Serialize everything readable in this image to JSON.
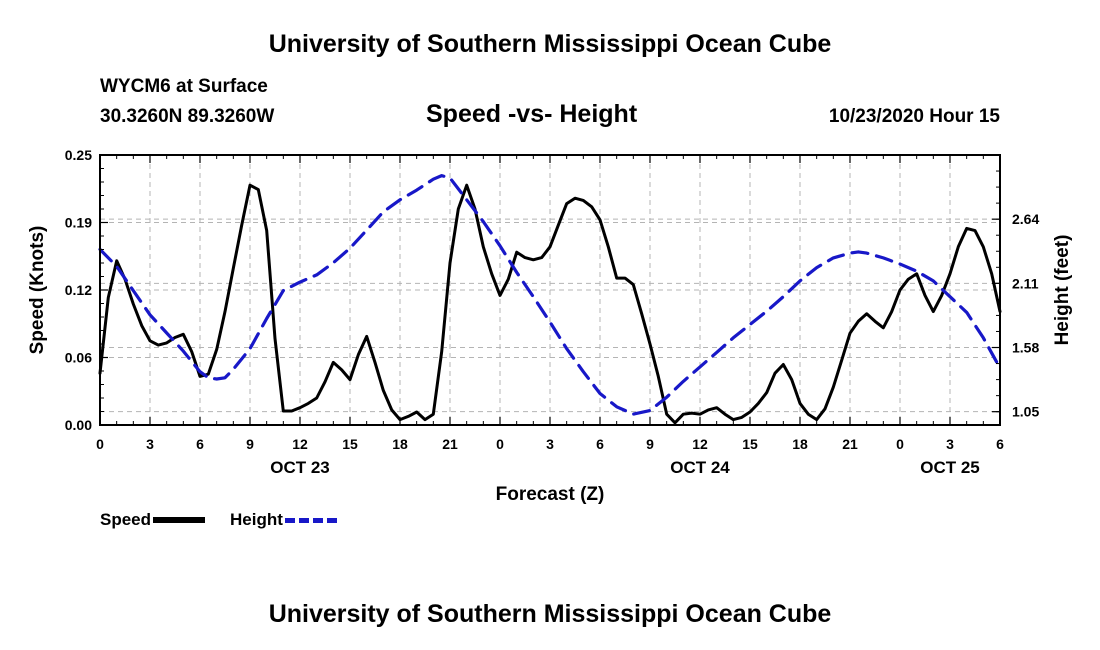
{
  "header": {
    "title": "University of Southern Mississippi Ocean Cube",
    "station": "WYCM6 at Surface",
    "coords": "30.3260N 89.3260W",
    "plot_title": "Speed -vs- Height",
    "date": "10/23/2020 Hour 15"
  },
  "footer": {
    "title": "University of Southern Mississippi Ocean Cube"
  },
  "legend": {
    "speed_label": "Speed",
    "height_label": "Height"
  },
  "colors": {
    "speed": "#000000",
    "height": "#1818c8",
    "grid": "#b4b4b4"
  },
  "chart_data": {
    "type": "line",
    "title": "Speed -vs- Height",
    "xlabel": "Forecast (Z)",
    "ylabel_left": "Speed (Knots)",
    "ylabel_right": "Height (feet)",
    "x_range": [
      0,
      54
    ],
    "x_ticks": [
      0,
      3,
      6,
      9,
      12,
      15,
      18,
      21,
      24,
      27,
      30,
      33,
      36,
      39,
      42,
      45,
      48,
      51,
      54
    ],
    "x_tick_labels": [
      "0",
      "3",
      "6",
      "9",
      "12",
      "15",
      "18",
      "21",
      "0",
      "3",
      "6",
      "9",
      "12",
      "15",
      "18",
      "21",
      "0",
      "3",
      "6"
    ],
    "date_labels": [
      {
        "x": 12,
        "text": "OCT 23"
      },
      {
        "x": 36,
        "text": "OCT 24"
      },
      {
        "x": 51,
        "text": "OCT 25"
      }
    ],
    "y_left": {
      "min": 0,
      "max": 0.25,
      "ticks": [
        "0.00",
        "0.06",
        "0.12",
        "0.19",
        "0.25"
      ],
      "tick_values": [
        0,
        0.0625,
        0.125,
        0.1875,
        0.25
      ]
    },
    "y_right": {
      "min": 0.94,
      "max": 3.17,
      "ticks": [
        "1.05",
        "1.58",
        "2.11",
        "2.64"
      ],
      "tick_values": [
        1.05,
        1.58,
        2.11,
        2.64
      ]
    },
    "series": [
      {
        "name": "Speed",
        "axis": "left",
        "x": [
          0,
          0.5,
          1,
          1.5,
          2,
          2.5,
          3,
          3.5,
          4,
          4.5,
          5,
          5.5,
          6,
          6.5,
          7,
          7.5,
          8,
          8.5,
          9,
          9.5,
          10,
          10.5,
          11,
          11.5,
          12,
          12.5,
          13,
          13.5,
          14,
          14.5,
          15,
          15.5,
          16,
          16.5,
          17,
          17.5,
          18,
          18.5,
          19,
          19.5,
          20,
          20.5,
          21,
          21.5,
          22,
          22.5,
          23,
          23.5,
          24,
          24.5,
          25,
          25.5,
          26,
          26.5,
          27,
          27.5,
          28,
          28.5,
          29,
          29.5,
          30,
          30.5,
          31,
          31.5,
          32,
          32.5,
          33,
          33.5,
          34,
          34.5,
          35,
          35.5,
          36,
          36.5,
          37,
          37.5,
          38,
          38.5,
          39,
          39.5,
          40,
          40.5,
          41,
          41.5,
          42,
          42.5,
          43,
          43.5,
          44,
          44.5,
          45,
          45.5,
          46,
          46.5,
          47,
          47.5,
          48,
          48.5,
          49,
          49.5,
          50,
          50.5,
          51,
          51.5,
          52,
          52.5,
          53,
          53.5,
          54
        ],
        "values": [
          0.048,
          0.118,
          0.152,
          0.135,
          0.112,
          0.092,
          0.078,
          0.074,
          0.076,
          0.081,
          0.084,
          0.068,
          0.045,
          0.047,
          0.07,
          0.105,
          0.145,
          0.185,
          0.222,
          0.218,
          0.18,
          0.08,
          0.013,
          0.013,
          0.016,
          0.02,
          0.025,
          0.04,
          0.058,
          0.051,
          0.042,
          0.065,
          0.082,
          0.058,
          0.032,
          0.014,
          0.005,
          0.008,
          0.012,
          0.005,
          0.01,
          0.068,
          0.15,
          0.2,
          0.222,
          0.2,
          0.165,
          0.14,
          0.12,
          0.135,
          0.16,
          0.155,
          0.153,
          0.155,
          0.165,
          0.185,
          0.205,
          0.21,
          0.208,
          0.202,
          0.19,
          0.165,
          0.136,
          0.136,
          0.13,
          0.103,
          0.075,
          0.045,
          0.01,
          0.002,
          0.01,
          0.011,
          0.01,
          0.014,
          0.016,
          0.01,
          0.005,
          0.007,
          0.012,
          0.02,
          0.03,
          0.048,
          0.056,
          0.042,
          0.02,
          0.01,
          0.005,
          0.015,
          0.035,
          0.06,
          0.085,
          0.096,
          0.103,
          0.096,
          0.09,
          0.105,
          0.125,
          0.135,
          0.14,
          0.12,
          0.105,
          0.12,
          0.14,
          0.165,
          0.182,
          0.18,
          0.165,
          0.14,
          0.105
        ]
      },
      {
        "name": "Height",
        "axis": "right",
        "x": [
          0,
          1,
          2,
          3,
          4,
          5,
          6,
          6.5,
          7,
          7.5,
          8,
          9,
          10,
          11,
          12,
          13,
          14,
          15,
          16,
          17,
          18,
          19,
          20,
          20.5,
          21,
          22,
          23,
          24,
          25,
          26,
          27,
          28,
          29,
          30,
          31,
          32,
          33,
          34,
          35,
          36,
          37,
          38,
          39,
          40,
          41,
          42,
          43,
          44,
          45,
          45.5,
          46,
          47,
          48,
          49,
          50,
          51,
          52,
          53,
          54
        ],
        "values": [
          2.39,
          2.25,
          2.05,
          1.85,
          1.7,
          1.55,
          1.38,
          1.33,
          1.32,
          1.33,
          1.4,
          1.57,
          1.82,
          2.05,
          2.12,
          2.18,
          2.28,
          2.4,
          2.55,
          2.7,
          2.8,
          2.88,
          2.97,
          3.0,
          2.98,
          2.8,
          2.62,
          2.42,
          2.2,
          2.0,
          1.79,
          1.57,
          1.38,
          1.2,
          1.09,
          1.03,
          1.06,
          1.17,
          1.3,
          1.42,
          1.54,
          1.66,
          1.77,
          1.88,
          2.0,
          2.13,
          2.24,
          2.32,
          2.36,
          2.37,
          2.36,
          2.32,
          2.27,
          2.21,
          2.13,
          2.0,
          1.87,
          1.66,
          1.41
        ]
      }
    ]
  }
}
